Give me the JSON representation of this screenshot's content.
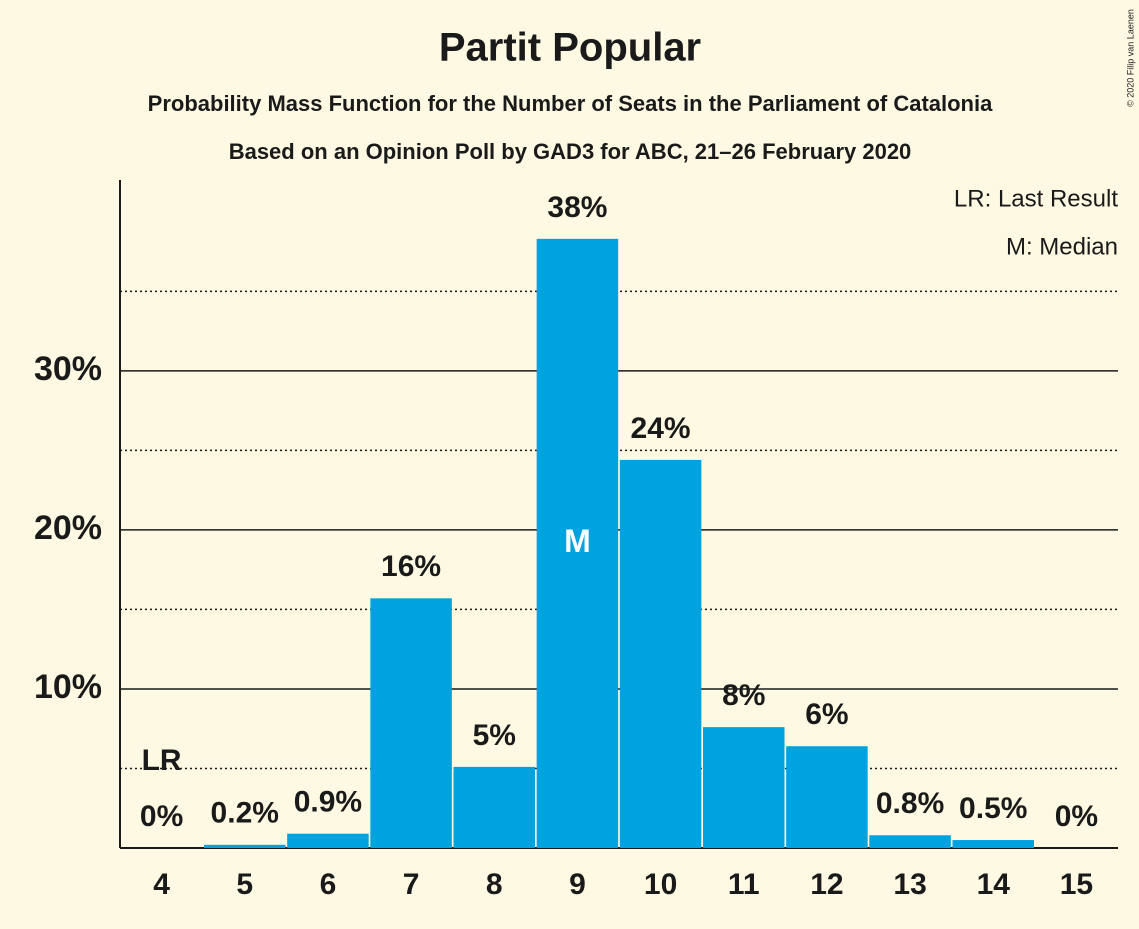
{
  "chart_data": {
    "type": "bar",
    "title": "Partit Popular",
    "subtitles": [
      "Probability Mass Function for the Number of Seats in the Parliament of Catalonia",
      "Based on an Opinion Poll by GAD3 for ABC, 21–26 February 2020"
    ],
    "categories": [
      4,
      5,
      6,
      7,
      8,
      9,
      10,
      11,
      12,
      13,
      14,
      15
    ],
    "values": [
      0,
      0.2,
      0.9,
      15.7,
      5.1,
      38.3,
      24.4,
      7.6,
      6.4,
      0.8,
      0.5,
      0
    ],
    "value_labels": [
      "0%",
      "0.2%",
      "0.9%",
      "16%",
      "5%",
      "38%",
      "24%",
      "8%",
      "6%",
      "0.8%",
      "0.5%",
      "0%"
    ],
    "color": "#00a3e0",
    "ylim": [
      0,
      42
    ],
    "yticks": [
      {
        "value": 10,
        "label": "10%"
      },
      {
        "value": 20,
        "label": "20%"
      },
      {
        "value": 30,
        "label": "30%"
      }
    ],
    "minor_yticks": [
      5,
      15,
      25,
      35
    ],
    "grid": true,
    "markers": [
      {
        "text": "LR",
        "category": 4
      },
      {
        "text": "M",
        "category": 9
      }
    ],
    "legend": [
      "LR: Last Result",
      "M: Median"
    ],
    "credit": "© 2020 Filip van Laenen"
  }
}
